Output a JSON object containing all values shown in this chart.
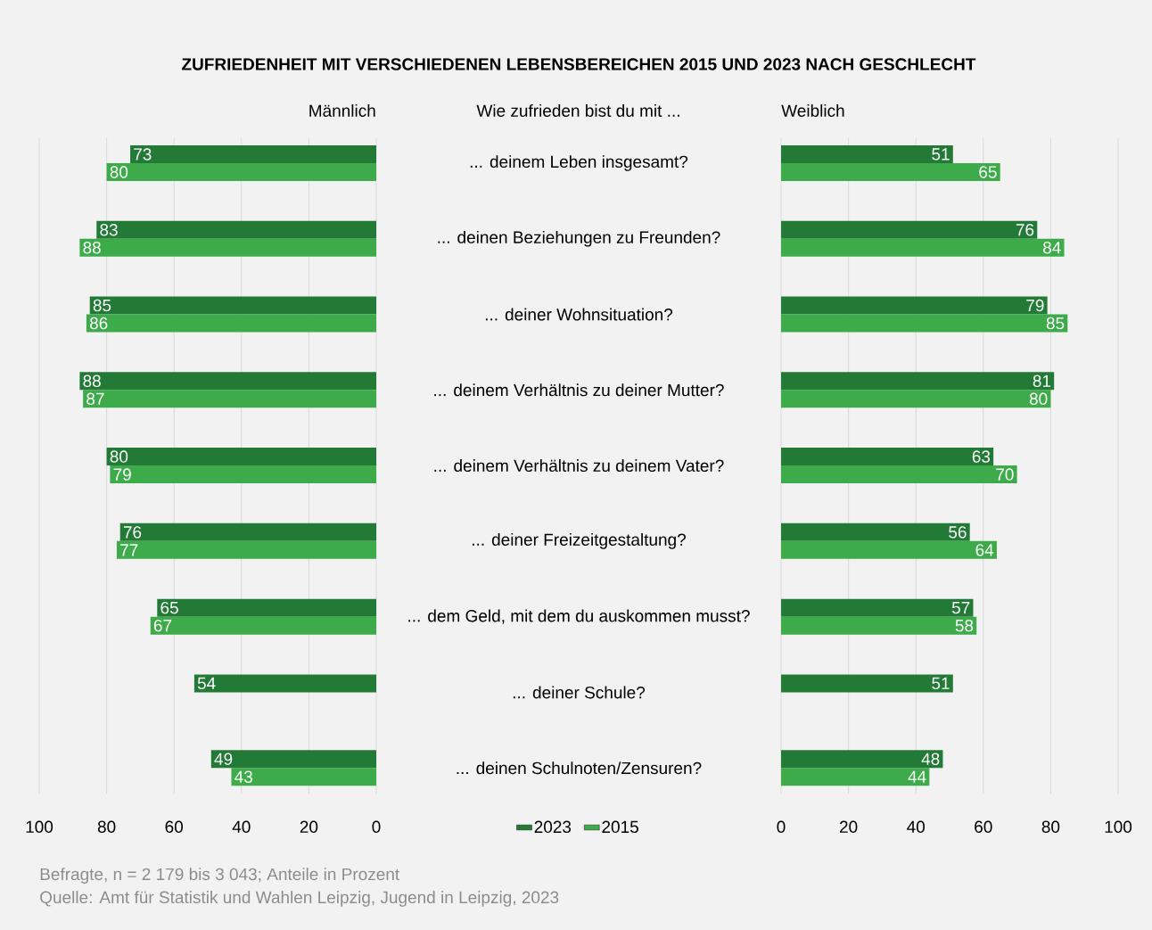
{
  "chart_data": [
    {
      "type": "bar",
      "orientation": "horizontal",
      "title": "ZUFRIEDENHEIT MIT VERSCHIEDENEN LEBENSBEREICHEN 2015 UND 2023 NACH GESCHLECHT",
      "subtitle": "Männlich",
      "ylabel": "Wie zufrieden bist du mit ...",
      "categories": [
        "... deinem Leben insgesamt?",
        "... deinen Beziehungen zu Freunden?",
        "... deiner Wohnsituation?",
        "... deinem Verhältnis zu deiner Mutter?",
        "... deinem Verhältnis zu deinem Vater?",
        "... deiner Freizeitgestaltung?",
        "... dem Geld, mit dem du auskommen musst?",
        "... deiner Schule?",
        "... deinen Schulnoten/Zensuren?"
      ],
      "series": [
        {
          "name": "2023",
          "color": "#237a37",
          "values": [
            73,
            83,
            85,
            88,
            80,
            76,
            65,
            54,
            49
          ]
        },
        {
          "name": "2015",
          "color": "#3dab4a",
          "values": [
            80,
            88,
            86,
            87,
            79,
            77,
            67,
            null,
            43
          ]
        }
      ],
      "xlim": [
        100,
        0
      ],
      "xticks": [
        100,
        80,
        60,
        40,
        20,
        0
      ],
      "grid": "x",
      "legend": "bottom",
      "data_labels": true,
      "annotations": [
        "Befragte, n = 2 179 bis 3 043; Anteile in Prozent",
        "Quelle: Amt für Statistik und Wahlen Leipzig, Jugend in Leipzig, 2023"
      ]
    },
    {
      "type": "bar",
      "orientation": "horizontal",
      "title": "Weiblich",
      "categories": [
        null,
        null,
        null,
        null,
        null,
        null,
        null,
        null,
        null
      ],
      "series": [
        {
          "color": "#237a37",
          "values": [
            51,
            76,
            79,
            81,
            63,
            56,
            57,
            51,
            48
          ]
        },
        {
          "color": "#3dab4a",
          "values": [
            65,
            84,
            85,
            80,
            70,
            64,
            58,
            null,
            44
          ]
        }
      ],
      "xlim": [
        0,
        100
      ],
      "xticks": [
        0,
        20,
        40,
        60,
        80,
        100
      ],
      "grid": "x",
      "tick_labels": "x",
      "data_labels": true
    }
  ]
}
